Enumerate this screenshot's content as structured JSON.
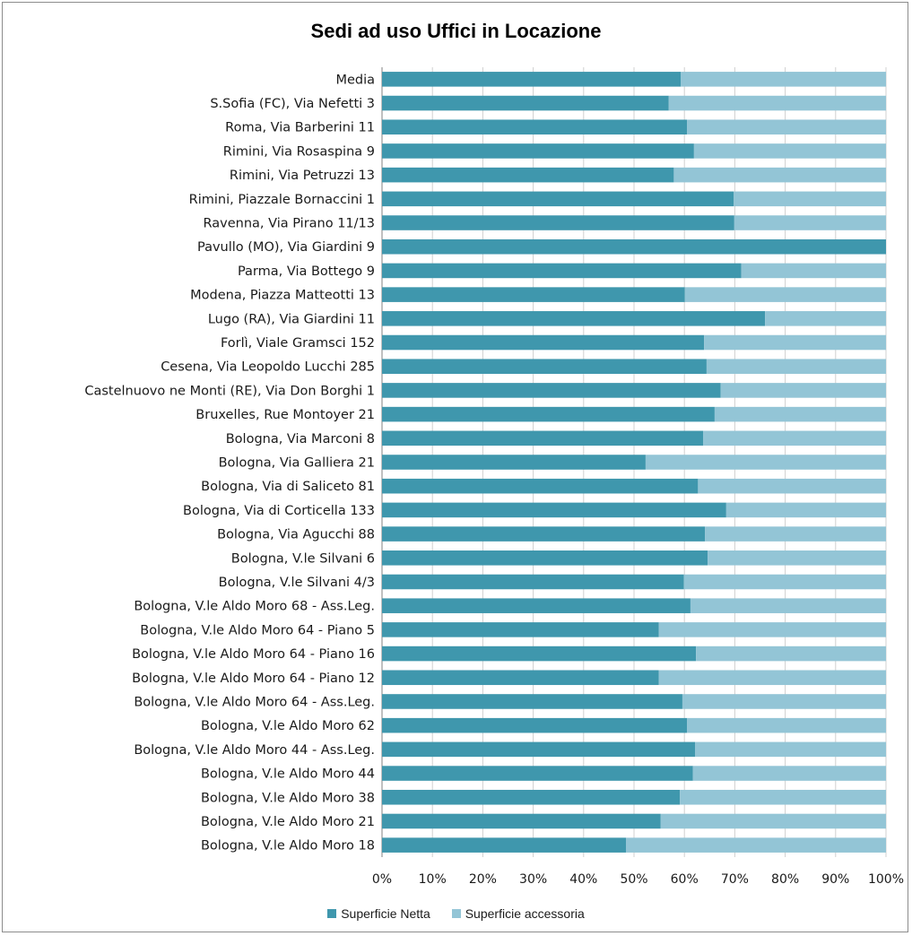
{
  "chart_data": {
    "type": "bar",
    "orientation": "horizontal",
    "stacked": "percent",
    "title": "Sedi ad uso Uffici in Locazione",
    "categories": [
      "Media",
      "S.Sofia (FC), Via Nefetti 3",
      "Roma, Via Barberini 11",
      "Rimini, Via Rosaspina 9",
      "Rimini, Via Petruzzi 13",
      "Rimini, Piazzale Bornaccini 1",
      "Ravenna, Via Pirano 11/13",
      "Pavullo (MO), Via Giardini 9",
      "Parma, Via Bottego 9",
      "Modena, Piazza Matteotti 13",
      "Lugo (RA), Via Giardini 11",
      "Forlì, Viale Gramsci 152",
      "Cesena, Via Leopoldo Lucchi 285",
      "Castelnuovo ne Monti (RE), Via Don Borghi 1",
      "Bruxelles, Rue Montoyer 21",
      "Bologna, Via Marconi 8",
      "Bologna, Via Galliera 21",
      "Bologna, Via di Saliceto 81",
      "Bologna, Via di Corticella 133",
      "Bologna, Via Agucchi 88",
      "Bologna, V.le Silvani 6",
      "Bologna, V.le Silvani 4/3",
      "Bologna, V.le Aldo Moro 68 - Ass.Leg.",
      "Bologna, V.le Aldo Moro 64 - Piano 5",
      "Bologna, V.le Aldo Moro 64 - Piano 16",
      "Bologna, V.le Aldo Moro 64 - Piano 12",
      "Bologna, V.le Aldo Moro 64 - Ass.Leg.",
      "Bologna, V.le Aldo Moro 62",
      "Bologna, V.le Aldo Moro 44 - Ass.Leg.",
      "Bologna, V.le Aldo Moro 44",
      "Bologna, V.le Aldo Moro 38",
      "Bologna, V.le Aldo Moro 21",
      "Bologna, V.le Aldo Moro 18"
    ],
    "series": [
      {
        "name": "Superficie Netta",
        "color": "#3f97ad",
        "values": [
          59.3,
          56.9,
          60.5,
          61.9,
          57.9,
          69.8,
          69.9,
          100,
          71.3,
          60.1,
          76.0,
          63.9,
          64.4,
          67.2,
          66.0,
          63.7,
          52.3,
          62.7,
          68.3,
          64.1,
          64.6,
          59.9,
          61.2,
          54.9,
          62.3,
          54.9,
          59.6,
          60.5,
          62.1,
          61.7,
          59.1,
          55.3,
          48.4
        ]
      },
      {
        "name": "Superficie accessoria",
        "color": "#93c5d6",
        "values": [
          40.7,
          43.1,
          39.5,
          38.1,
          42.1,
          30.2,
          30.1,
          0,
          28.7,
          39.9,
          24.0,
          36.1,
          35.6,
          32.8,
          34.0,
          36.3,
          47.7,
          37.3,
          31.7,
          35.9,
          35.4,
          40.1,
          38.8,
          45.1,
          37.7,
          45.1,
          40.4,
          39.5,
          37.9,
          38.3,
          40.9,
          44.7,
          51.6
        ]
      }
    ],
    "xlim": [
      0,
      100
    ],
    "xticks": [
      "0%",
      "10%",
      "20%",
      "30%",
      "40%",
      "50%",
      "60%",
      "70%",
      "80%",
      "90%",
      "100%"
    ],
    "grid": true,
    "legend_position": "bottom"
  }
}
